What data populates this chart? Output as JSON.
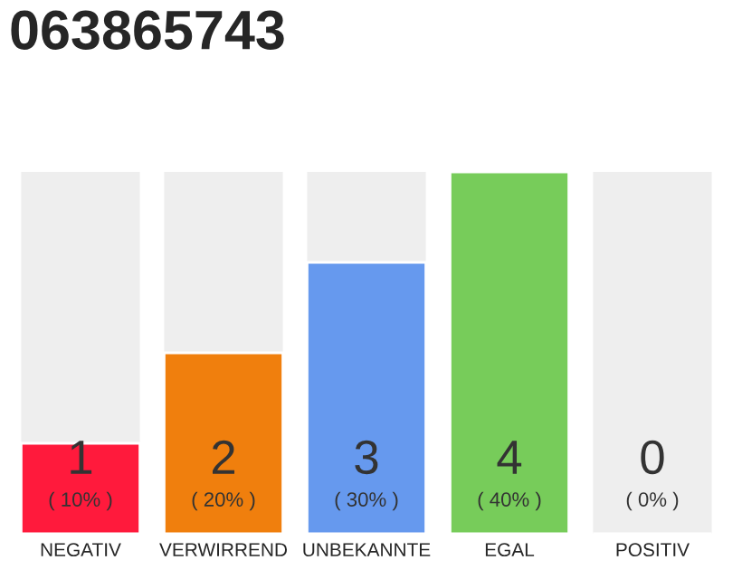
{
  "chart_data": {
    "type": "bar",
    "title": "063865743",
    "categories": [
      "NEGATIV",
      "VERWIRREND",
      "UNBEKANNTE",
      "EGAL",
      "POSITIV"
    ],
    "values": [
      1,
      2,
      3,
      4,
      0
    ],
    "colors": [
      "#ff1a3c",
      "#f07f0d",
      "#6699ee",
      "#77cc5a",
      null
    ],
    "value_labels": [
      "1\n( 10% )",
      "2\n( 20% )",
      "3\n( 30% )",
      "4\n( 40% )",
      "0\n( 0% )"
    ],
    "ylim": [
      0,
      4
    ],
    "tick_labels": "x",
    "grid": false,
    "legend": false
  }
}
